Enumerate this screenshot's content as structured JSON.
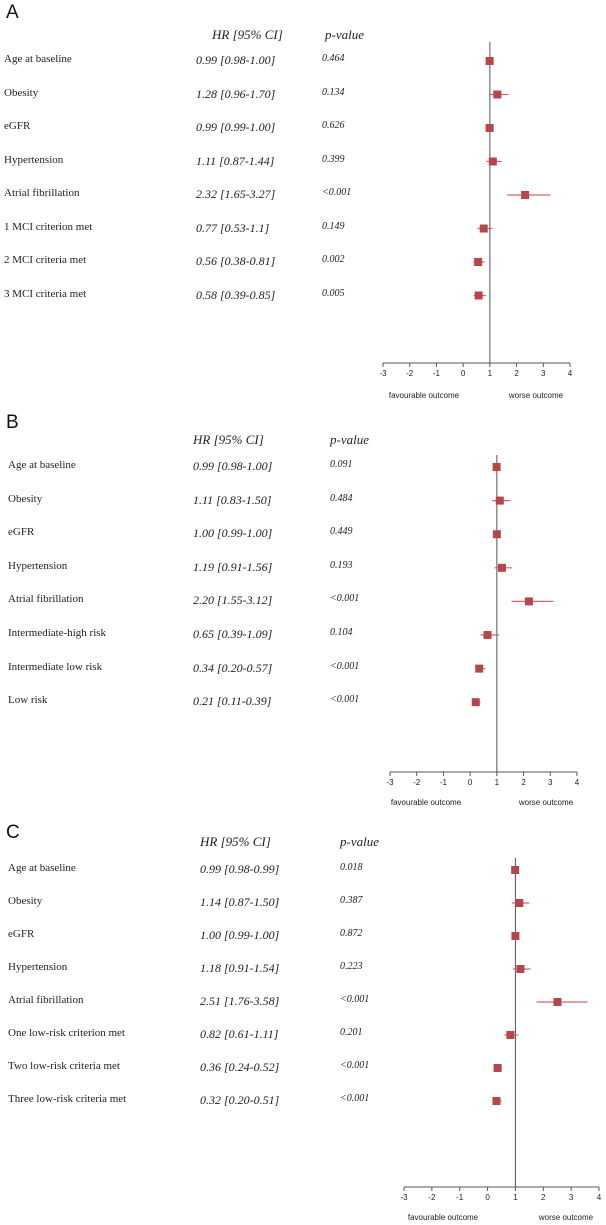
{
  "chart_data": [
    {
      "panel": "A",
      "type": "forest",
      "header_estimate": "HR [95% CI]",
      "header_pvalue": "p-value",
      "rows": [
        {
          "label": "Age at baseline",
          "hr_text": "0.99 [0.98-1.00]",
          "p": "0.464",
          "hr": 0.99,
          "lo": 0.98,
          "hi": 1.0
        },
        {
          "label": "Obesity",
          "hr_text": "1.28 [0.96-1.70]",
          "p": "0.134",
          "hr": 1.28,
          "lo": 0.96,
          "hi": 1.7
        },
        {
          "label": "eGFR",
          "hr_text": "0.99 [0.99-1.00]",
          "p": "0.626",
          "hr": 0.99,
          "lo": 0.99,
          "hi": 1.0
        },
        {
          "label": "Hypertension",
          "hr_text": "1.11 [0.87-1.44]",
          "p": "0.399",
          "hr": 1.11,
          "lo": 0.87,
          "hi": 1.44
        },
        {
          "label": "Atrial fibrillation",
          "hr_text": "2.32 [1.65-3.27]",
          "p": "<0.001",
          "hr": 2.32,
          "lo": 1.65,
          "hi": 3.27
        },
        {
          "label": "1 MCI criterion met",
          "hr_text": "0.77 [0.53-1.1]",
          "p": "0.149",
          "hr": 0.77,
          "lo": 0.53,
          "hi": 1.1
        },
        {
          "label": "2 MCI criteria met",
          "hr_text": "0.56 [0.38-0.81]",
          "p": "0.002",
          "hr": 0.56,
          "lo": 0.38,
          "hi": 0.81
        },
        {
          "label": "3 MCI criteria met",
          "hr_text": "0.58 [0.39-0.85]",
          "p": "0.005",
          "hr": 0.58,
          "lo": 0.39,
          "hi": 0.85
        }
      ],
      "xlim": [
        -3,
        4
      ],
      "xticks": [
        "-3",
        "-2",
        "-1",
        "0",
        "1",
        "2",
        "3",
        "4"
      ],
      "reference_line": 1,
      "xlabel_left": "favourable outcome",
      "xlabel_right": "worse outcome"
    },
    {
      "panel": "B",
      "type": "forest",
      "header_estimate": "HR [95% CI]",
      "header_pvalue": "p-value",
      "rows": [
        {
          "label": "Age at baseline",
          "hr_text": "0.99 [0.98-1.00]",
          "p": "0.091",
          "hr": 0.99,
          "lo": 0.98,
          "hi": 1.0
        },
        {
          "label": "Obesity",
          "hr_text": "1.11 [0.83-1.50]",
          "p": "0.484",
          "hr": 1.11,
          "lo": 0.83,
          "hi": 1.5
        },
        {
          "label": "eGFR",
          "hr_text": "1.00 [0.99-1.00]",
          "p": "0.449",
          "hr": 1.0,
          "lo": 0.99,
          "hi": 1.0
        },
        {
          "label": "Hypertension",
          "hr_text": "1.19 [0.91-1.56]",
          "p": "0.193",
          "hr": 1.19,
          "lo": 0.91,
          "hi": 1.56
        },
        {
          "label": "Atrial fibrillation",
          "hr_text": "2.20 [1.55-3.12]",
          "p": "<0.001",
          "hr": 2.2,
          "lo": 1.55,
          "hi": 3.12
        },
        {
          "label": "Intermediate-high risk",
          "hr_text": "0.65 [0.39-1.09]",
          "p": "0.104",
          "hr": 0.65,
          "lo": 0.39,
          "hi": 1.09
        },
        {
          "label": "Intermediate low risk",
          "hr_text": "0.34 [0.20-0.57]",
          "p": "<0.001",
          "hr": 0.34,
          "lo": 0.2,
          "hi": 0.57
        },
        {
          "label": "Low risk",
          "hr_text": "0.21 [0.11-0.39]",
          "p": "<0.001",
          "hr": 0.21,
          "lo": 0.11,
          "hi": 0.39
        }
      ],
      "xlim": [
        -3,
        4
      ],
      "xticks": [
        "-3",
        "-2",
        "-1",
        "0",
        "1",
        "2",
        "3",
        "4"
      ],
      "reference_line": 1,
      "xlabel_left": "favourable outcome",
      "xlabel_right": "worse outcome"
    },
    {
      "panel": "C",
      "type": "forest",
      "header_estimate": "HR [95% CI]",
      "header_pvalue": "p-value",
      "rows": [
        {
          "label": "Age at baseline",
          "hr_text": "0.99 [0.98-0.99]",
          "p": "0.018",
          "hr": 0.99,
          "lo": 0.98,
          "hi": 0.99
        },
        {
          "label": "Obesity",
          "hr_text": "1.14 [0.87-1.50]",
          "p": "0.387",
          "hr": 1.14,
          "lo": 0.87,
          "hi": 1.5
        },
        {
          "label": "eGFR",
          "hr_text": "1.00 [0.99-1.00]",
          "p": "0.872",
          "hr": 1.0,
          "lo": 0.99,
          "hi": 1.0
        },
        {
          "label": "Hypertension",
          "hr_text": "1.18 [0.91-1.54]",
          "p": "0.223",
          "hr": 1.18,
          "lo": 0.91,
          "hi": 1.54
        },
        {
          "label": "Atrial fibrillation",
          "hr_text": "2.51 [1.76-3.58]",
          "p": "<0.001",
          "hr": 2.51,
          "lo": 1.76,
          "hi": 3.58
        },
        {
          "label": "One low-risk criterion met",
          "hr_text": "0.82 [0.61-1.11]",
          "p": "0.201",
          "hr": 0.82,
          "lo": 0.61,
          "hi": 1.11
        },
        {
          "label": "Two low-risk criteria met",
          "hr_text": "0.36 [0.24-0.52]",
          "p": "<0.001",
          "hr": 0.36,
          "lo": 0.24,
          "hi": 0.52
        },
        {
          "label": "Three low-risk criteria met",
          "hr_text": "0.32 [0.20-0.51]",
          "p": "<0.001",
          "hr": 0.32,
          "lo": 0.2,
          "hi": 0.51
        }
      ],
      "xlim": [
        -3,
        4
      ],
      "xticks": [
        "-3",
        "-2",
        "-1",
        "0",
        "1",
        "2",
        "3",
        "4"
      ],
      "reference_line": 1,
      "xlabel_left": "favourable outcome",
      "xlabel_right": "worse outcome"
    }
  ],
  "colors": {
    "marker": "#b5474b",
    "ci": "#c9676a",
    "axis": "#555555",
    "text": "#222222"
  }
}
